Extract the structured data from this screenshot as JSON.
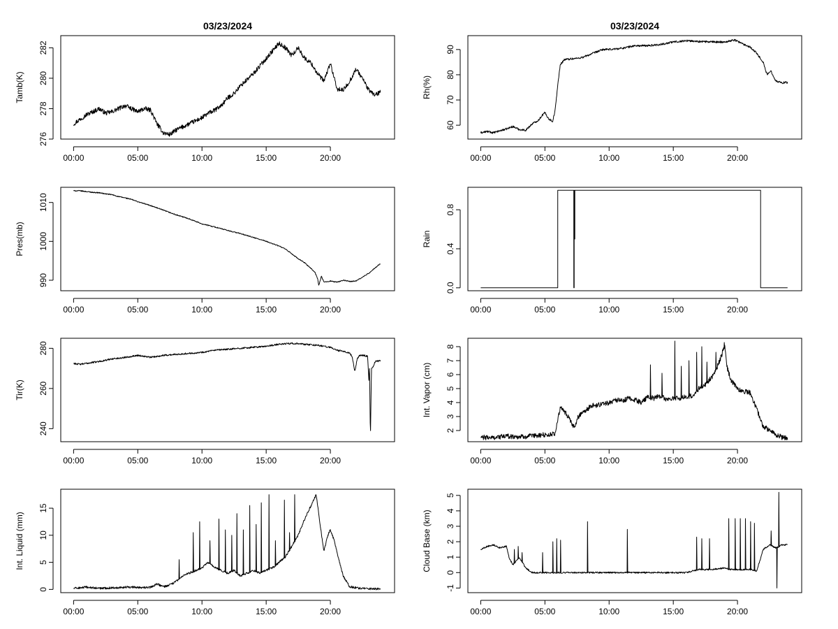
{
  "chart_data": [
    {
      "type": "line",
      "title": "03/23/2024",
      "xlabel": "",
      "ylabel": "Tamb(K)",
      "xlim": [
        0,
        24
      ],
      "ylim": [
        276,
        282.8
      ],
      "x_ticks": [
        0,
        5,
        10,
        15,
        20
      ],
      "x_tick_labels": [
        "00:00",
        "05:00",
        "10:00",
        "15:00",
        "20:00"
      ],
      "y_ticks": [
        276,
        278,
        280,
        282
      ],
      "y_tick_labels": [
        "276",
        "278",
        "280",
        "282"
      ],
      "noise": 0.15,
      "x": [
        0,
        0.5,
        1,
        1.5,
        2,
        2.5,
        3,
        3.5,
        4,
        4.5,
        5,
        5.5,
        6,
        6.5,
        7,
        7.5,
        8,
        8.5,
        9,
        9.5,
        10,
        10.5,
        11,
        11.5,
        12,
        12.5,
        13,
        13.5,
        14,
        14.5,
        15,
        15.5,
        16,
        16.5,
        17,
        17.5,
        18,
        18.5,
        19,
        19.5,
        20,
        20.5,
        21,
        21.5,
        22,
        22.5,
        23,
        23.5,
        23.9
      ],
      "values": [
        277.0,
        277.3,
        277.6,
        277.8,
        278.0,
        277.7,
        277.8,
        278.0,
        278.2,
        278.0,
        277.8,
        278.0,
        277.9,
        277.0,
        276.4,
        276.3,
        276.6,
        276.8,
        277.0,
        277.2,
        277.4,
        277.7,
        277.9,
        278.2,
        278.7,
        279.0,
        279.5,
        279.9,
        280.3,
        280.8,
        281.3,
        281.8,
        282.3,
        282.0,
        281.5,
        282.0,
        281.3,
        281.0,
        280.3,
        279.8,
        281.0,
        279.3,
        279.2,
        279.8,
        280.6,
        280.0,
        279.2,
        278.9,
        279.1
      ]
    },
    {
      "type": "line",
      "title": "03/23/2024",
      "xlabel": "",
      "ylabel": "Rh(%)",
      "xlim": [
        0,
        24
      ],
      "ylim": [
        54.5,
        95.5
      ],
      "x_ticks": [
        0,
        5,
        10,
        15,
        20
      ],
      "x_tick_labels": [
        "00:00",
        "05:00",
        "10:00",
        "15:00",
        "20:00"
      ],
      "y_ticks": [
        60,
        70,
        80,
        90
      ],
      "y_tick_labels": [
        "60",
        "70",
        "80",
        "90"
      ],
      "noise": 0.4,
      "x": [
        0,
        0.5,
        1,
        1.5,
        2,
        2.5,
        3,
        3.5,
        4,
        4.5,
        4.8,
        5,
        5.3,
        5.6,
        5.8,
        6.0,
        6.2,
        6.5,
        7,
        7.5,
        8,
        8.5,
        9,
        9.5,
        10,
        11,
        12,
        13,
        14,
        15,
        16,
        17,
        18,
        19,
        19.5,
        19.8,
        20.5,
        21,
        21.5,
        22,
        22.3,
        22.6,
        23,
        23.5,
        23.9
      ],
      "values": [
        57.0,
        57.5,
        57.0,
        57.8,
        58.5,
        59.5,
        58.3,
        58.0,
        60.5,
        62.0,
        64.0,
        65.0,
        62.5,
        61.5,
        66.0,
        76.0,
        84.0,
        86.0,
        86.3,
        86.5,
        87.0,
        88.0,
        89.0,
        90.0,
        90.0,
        90.5,
        91.5,
        91.5,
        92.0,
        93.0,
        93.5,
        93.2,
        93.0,
        93.0,
        93.5,
        93.8,
        92.0,
        91.0,
        88.5,
        85.0,
        80.0,
        81.5,
        77.5,
        76.8,
        77.0
      ]
    },
    {
      "type": "line",
      "title": "",
      "xlabel": "",
      "ylabel": "Pres(mb)",
      "xlim": [
        0,
        24
      ],
      "ylim": [
        987.3,
        1013.9
      ],
      "x_ticks": [
        0,
        5,
        10,
        15,
        20
      ],
      "x_tick_labels": [
        "00:00",
        "05:00",
        "10:00",
        "15:00",
        "20:00"
      ],
      "y_ticks": [
        990,
        1000,
        1010
      ],
      "y_tick_labels": [
        "990",
        "1000",
        "1010"
      ],
      "noise": 0.12,
      "x": [
        0,
        0.5,
        1,
        1.5,
        2,
        2.5,
        3,
        3.5,
        4,
        4.5,
        5,
        6,
        7,
        8,
        9,
        10,
        11,
        12,
        13,
        14,
        15,
        16,
        16.5,
        17,
        17.5,
        18,
        18.5,
        18.8,
        19,
        19.1,
        19.3,
        19.5,
        20,
        20.5,
        21,
        21.5,
        22,
        22.5,
        23,
        23.5,
        23.9
      ],
      "values": [
        1013.0,
        1013.0,
        1012.8,
        1012.6,
        1012.5,
        1012.2,
        1012.0,
        1011.5,
        1011.2,
        1010.8,
        1010.2,
        1009.2,
        1008.0,
        1006.8,
        1005.8,
        1004.5,
        1003.7,
        1002.8,
        1002.0,
        1001.0,
        1000.0,
        998.8,
        998.0,
        996.8,
        995.5,
        994.5,
        993.0,
        992.0,
        990.5,
        988.7,
        991.0,
        989.5,
        989.8,
        989.5,
        990.0,
        989.7,
        989.8,
        990.8,
        991.8,
        993.2,
        994.3
      ]
    },
    {
      "type": "line",
      "title": "",
      "xlabel": "",
      "ylabel": "Rain",
      "xlim": [
        0,
        24
      ],
      "ylim": [
        -0.03,
        1.03
      ],
      "x_ticks": [
        0,
        5,
        10,
        15,
        20
      ],
      "x_tick_labels": [
        "00:00",
        "05:00",
        "10:00",
        "15:00",
        "20:00"
      ],
      "y_ticks": [
        0,
        0.4,
        0.8
      ],
      "y_tick_labels": [
        "0.0",
        "0.4",
        "0.8"
      ],
      "noise": 0,
      "x": [
        0,
        6.0,
        6.0,
        7.25,
        7.25,
        7.28,
        7.28,
        7.31,
        7.31,
        7.33,
        7.33,
        21.8,
        21.8,
        23.9
      ],
      "values": [
        0,
        0,
        1,
        1,
        0,
        0,
        1,
        1,
        0.5,
        0.5,
        1,
        1,
        0,
        0
      ]
    },
    {
      "type": "line",
      "title": "",
      "xlabel": "",
      "ylabel": "Tir(K)",
      "xlim": [
        0,
        24
      ],
      "ylim": [
        233.5,
        285.0
      ],
      "x_ticks": [
        0,
        5,
        10,
        15,
        20
      ],
      "x_tick_labels": [
        "00:00",
        "05:00",
        "10:00",
        "15:00",
        "20:00"
      ],
      "y_ticks": [
        240,
        260,
        280
      ],
      "y_tick_labels": [
        "240",
        "260",
        "280"
      ],
      "noise": 0.4,
      "x": [
        0,
        0.5,
        1,
        1.5,
        2,
        2.5,
        3,
        3.5,
        4,
        4.5,
        5,
        6,
        7,
        8,
        9,
        10,
        11,
        12,
        13,
        14,
        15,
        16,
        17,
        18,
        19,
        20,
        20.5,
        21,
        21.5,
        21.7,
        21.9,
        22.1,
        22.3,
        22.6,
        22.9,
        23.0,
        23.05,
        23.12,
        23.2,
        23.3,
        23.5,
        23.9
      ],
      "values": [
        272.5,
        272.0,
        272.5,
        273.0,
        273.5,
        274.0,
        274.8,
        275.0,
        275.5,
        276.0,
        276.5,
        275.5,
        276.5,
        277.0,
        277.5,
        278.0,
        279.0,
        279.5,
        280.0,
        280.5,
        281.0,
        282.0,
        282.5,
        282.0,
        281.5,
        280.5,
        279.0,
        278.5,
        277.5,
        276.0,
        268.5,
        275.0,
        276.5,
        276.5,
        276.0,
        263.5,
        270.0,
        234.5,
        270.0,
        270.5,
        273.5,
        273.8
      ]
    },
    {
      "type": "line",
      "title": "",
      "xlabel": "",
      "ylabel": "Int. Vapor (cm)",
      "xlim": [
        0,
        24
      ],
      "ylim": [
        1.2,
        8.6
      ],
      "x_ticks": [
        0,
        5,
        10,
        15,
        20
      ],
      "x_tick_labels": [
        "00:00",
        "05:00",
        "10:00",
        "15:00",
        "20:00"
      ],
      "y_ticks": [
        2,
        3,
        4,
        5,
        6,
        7,
        8
      ],
      "y_tick_labels": [
        "2",
        "3",
        "4",
        "5",
        "6",
        "7",
        "8"
      ],
      "noise": 0.18,
      "x": [
        0,
        1,
        2,
        3,
        4,
        5,
        5.5,
        5.8,
        6.0,
        6.2,
        6.5,
        6.8,
        7.0,
        7.3,
        7.6,
        8.0,
        8.3,
        8.6,
        9,
        9.5,
        10,
        10.5,
        11,
        11.5,
        12,
        12.5,
        13,
        13.5,
        14,
        14.5,
        15,
        15.5,
        16,
        16.5,
        17,
        17.5,
        18,
        18.5,
        18.8,
        19.0,
        19.2,
        19.5,
        20,
        20.5,
        21,
        21.5,
        22,
        22.5,
        23,
        23.5,
        23.9
      ],
      "values": [
        1.5,
        1.5,
        1.6,
        1.55,
        1.6,
        1.7,
        1.7,
        1.8,
        2.8,
        3.6,
        3.4,
        3.0,
        2.6,
        2.2,
        3.0,
        3.4,
        3.5,
        3.8,
        3.8,
        3.9,
        4.0,
        4.2,
        4.1,
        4.3,
        4.2,
        4.0,
        4.4,
        4.3,
        4.5,
        4.2,
        4.3,
        4.3,
        4.4,
        4.5,
        5.0,
        5.3,
        5.8,
        6.7,
        7.5,
        8.0,
        6.5,
        5.6,
        5.0,
        4.8,
        4.7,
        3.5,
        2.3,
        2.0,
        1.7,
        1.5,
        1.5
      ],
      "spikes_x": [
        13.2,
        14.1,
        15.1,
        15.6,
        16.2,
        16.8,
        17.2,
        17.6,
        18.3,
        18.95
      ],
      "spikes_y": [
        6.7,
        6.1,
        8.4,
        6.6,
        7.0,
        7.6,
        8.0,
        6.9,
        7.6,
        8.3
      ]
    },
    {
      "type": "line",
      "title": "",
      "xlabel": "",
      "ylabel": "Int. Liquid (mm)",
      "xlim": [
        0,
        24
      ],
      "ylim": [
        -0.6,
        18.5
      ],
      "x_ticks": [
        0,
        5,
        10,
        15,
        20
      ],
      "x_tick_labels": [
        "00:00",
        "05:00",
        "10:00",
        "15:00",
        "20:00"
      ],
      "y_ticks": [
        0,
        5,
        10,
        15
      ],
      "y_tick_labels": [
        "0",
        "5",
        "10",
        "15"
      ],
      "noise": 0.2,
      "x": [
        0,
        1,
        2,
        3,
        4,
        5,
        5.5,
        6,
        6.5,
        7,
        7.5,
        8,
        8.5,
        9,
        9.5,
        10,
        10.5,
        11,
        11.5,
        12,
        12.5,
        13,
        13.5,
        14,
        14.5,
        15,
        15.5,
        16,
        16.5,
        17,
        17.5,
        18,
        18.5,
        18.9,
        19.2,
        19.5,
        19.8,
        20.0,
        20.3,
        20.6,
        21,
        21.5,
        22,
        22.5,
        23,
        23.9
      ],
      "values": [
        0.2,
        0.4,
        0.2,
        0.3,
        0.4,
        0.4,
        0.3,
        0.4,
        1.0,
        0.5,
        0.8,
        1.5,
        2.5,
        3.0,
        3.5,
        4.0,
        5.0,
        4.0,
        3.5,
        3.0,
        3.5,
        2.5,
        3.0,
        3.5,
        3.0,
        3.5,
        4.0,
        5.0,
        6.0,
        8.0,
        10.0,
        13.0,
        15.5,
        17.5,
        12.0,
        7.0,
        10.0,
        11.0,
        9.0,
        6.0,
        2.5,
        0.5,
        0.3,
        0.2,
        0.1,
        0.1
      ],
      "spikes_x": [
        8.2,
        9.3,
        9.8,
        10.6,
        11.3,
        11.8,
        12.3,
        12.7,
        13.2,
        13.7,
        14.2,
        14.6,
        15.2,
        15.7,
        16.4,
        16.8,
        17.2
      ],
      "spikes_y": [
        5.5,
        10.5,
        12.5,
        9.0,
        13.0,
        11.0,
        10.0,
        14.0,
        11.0,
        15.5,
        12.0,
        16.0,
        17.5,
        9.0,
        16.5,
        10.5,
        17.5
      ]
    },
    {
      "type": "line",
      "title": "",
      "xlabel": "",
      "ylabel": "Cloud Base (km)",
      "xlim": [
        0,
        24
      ],
      "ylim": [
        -1.3,
        5.4
      ],
      "x_ticks": [
        0,
        5,
        10,
        15,
        20
      ],
      "x_tick_labels": [
        "00:00",
        "05:00",
        "10:00",
        "15:00",
        "20:00"
      ],
      "y_ticks": [
        -1,
        0,
        1,
        2,
        3,
        4,
        5
      ],
      "y_tick_labels": [
        "-1",
        "0",
        "1",
        "2",
        "3",
        "4",
        "5"
      ],
      "noise": 0.05,
      "x": [
        0,
        0.5,
        1,
        1.5,
        2,
        2.2,
        2.5,
        3,
        3.5,
        4,
        5,
        6,
        7,
        8,
        9,
        10,
        11,
        12,
        13,
        14,
        15,
        16,
        16.5,
        17,
        18,
        19,
        19.5,
        20,
        21,
        21.5,
        22,
        22.5,
        23,
        23.5,
        23.9
      ],
      "values": [
        1.5,
        1.7,
        1.8,
        1.6,
        1.7,
        1.0,
        0.5,
        1.0,
        0.3,
        0.0,
        0.0,
        0.0,
        0.0,
        0.0,
        0.0,
        0.0,
        0.0,
        0.0,
        0.0,
        0.0,
        0.0,
        0.0,
        0.1,
        0.2,
        0.2,
        0.3,
        0.2,
        0.2,
        0.2,
        0.1,
        1.5,
        1.8,
        1.6,
        1.8,
        1.8
      ],
      "spikes_x": [
        2.6,
        2.9,
        3.2,
        4.8,
        5.6,
        5.9,
        6.2,
        8.3,
        11.4,
        16.8,
        17.2,
        17.8,
        19.3,
        19.8,
        20.2,
        20.6,
        21.0,
        21.3,
        22.6,
        23.05,
        23.2
      ],
      "spikes_y": [
        1.5,
        1.7,
        1.3,
        1.3,
        2.0,
        2.2,
        2.1,
        3.3,
        2.8,
        2.3,
        2.2,
        2.2,
        3.5,
        3.5,
        3.5,
        3.5,
        3.3,
        3.2,
        2.7,
        -1.0,
        5.2
      ]
    }
  ]
}
